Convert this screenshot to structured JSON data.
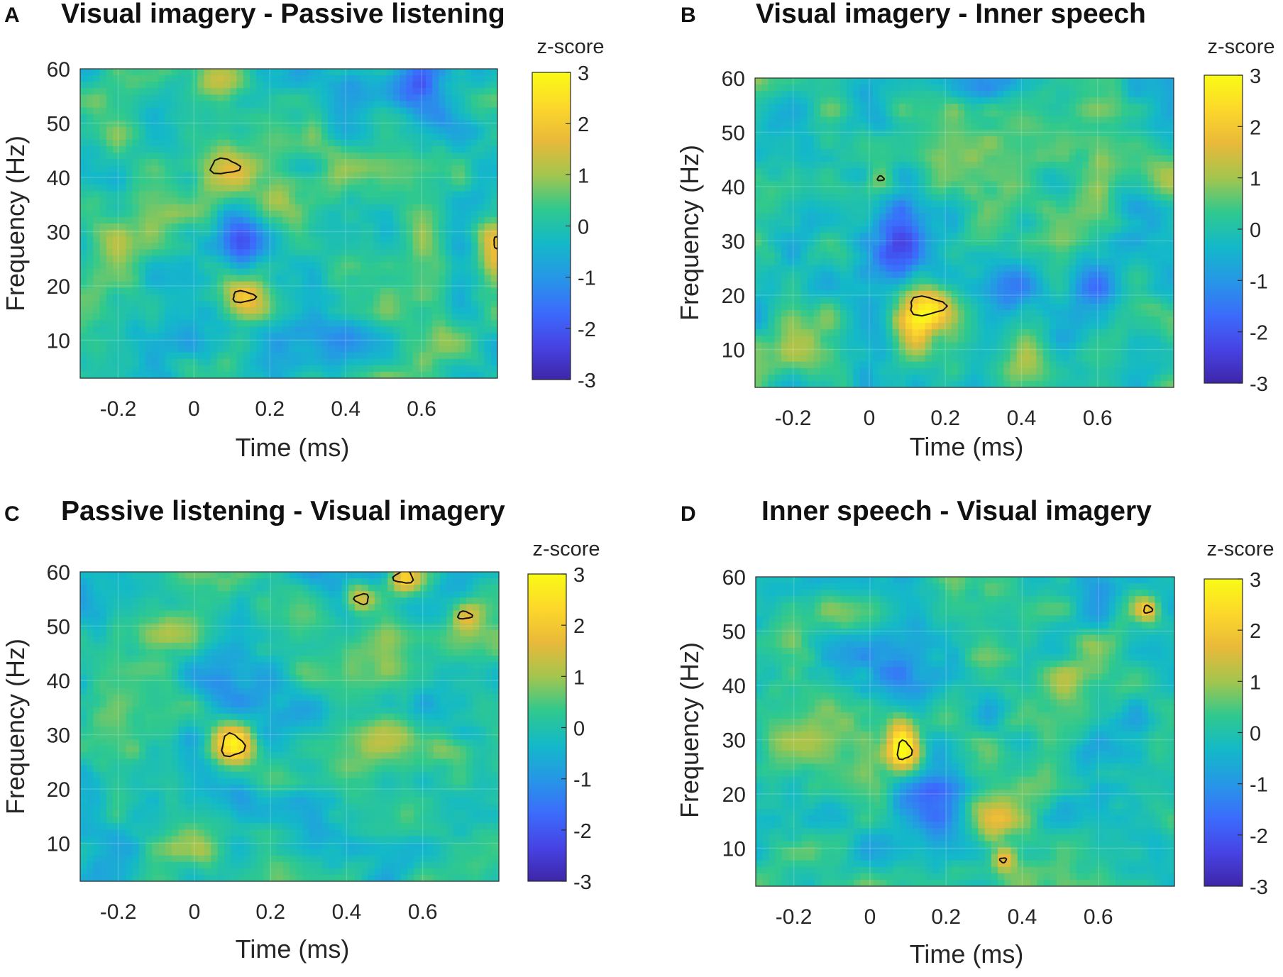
{
  "figure": {
    "colormap": [
      "#3e26a8",
      "#4743e5",
      "#3b6cfc",
      "#2697e6",
      "#13b9c8",
      "#30c98d",
      "#a4c54d",
      "#e9b93a",
      "#fdd82a",
      "#f9fb15"
    ],
    "contour_color": "#111111"
  },
  "chart_data": [
    {
      "panel": "A",
      "type": "heatmap",
      "title": "Visual imagery - Passive listening",
      "xlabel": "Time (ms)",
      "ylabel": "Frequency (Hz)",
      "xlim": [
        -0.3,
        0.8
      ],
      "ylim": [
        3,
        60
      ],
      "xticks": [
        -0.2,
        0,
        0.2,
        0.4,
        0.6
      ],
      "xtick_labels": [
        "-0.2",
        "0",
        "0.2",
        "0.4",
        "0.6"
      ],
      "yticks": [
        10,
        20,
        30,
        40,
        50,
        60
      ],
      "ytick_labels": [
        "10",
        "20",
        "30",
        "40",
        "50",
        "60"
      ],
      "colorbar": {
        "label": "z-score",
        "range": [
          -3,
          3
        ],
        "ticks": [
          3,
          2,
          1,
          0,
          -1,
          -2,
          -3
        ],
        "tick_labels": [
          "3",
          "2",
          "1",
          "0",
          "-1",
          "-2",
          "-3"
        ]
      },
      "blobs": [
        {
          "t": 0.05,
          "f": 58,
          "st": 0.05,
          "sf": 2.5,
          "z": 1.3
        },
        {
          "t": 0.55,
          "f": 57,
          "st": 0.08,
          "sf": 3,
          "z": -1.5
        },
        {
          "t": 0.68,
          "f": 51,
          "st": 0.06,
          "sf": 3,
          "z": -1.0
        },
        {
          "t": 0.1,
          "f": 41,
          "st": 0.05,
          "sf": 3,
          "z": 2.2
        },
        {
          "t": 0.12,
          "f": 29,
          "st": 0.04,
          "sf": 5,
          "z": -2.0
        },
        {
          "t": 0.25,
          "f": 35,
          "st": 0.06,
          "sf": 5,
          "z": 0.9
        },
        {
          "t": 0.13,
          "f": 18,
          "st": 0.04,
          "sf": 3,
          "z": 2.2
        },
        {
          "t": 0.79,
          "f": 28,
          "st": 0.03,
          "sf": 3,
          "z": 2.0
        },
        {
          "t": 0.35,
          "f": 12,
          "st": 0.08,
          "sf": 4,
          "z": -0.8
        },
        {
          "t": 0.68,
          "f": 9,
          "st": 0.06,
          "sf": 3,
          "z": 0.8
        },
        {
          "t": -0.15,
          "f": 30,
          "st": 0.08,
          "sf": 6,
          "z": 0.6
        },
        {
          "t": 0.4,
          "f": 43,
          "st": 0.07,
          "sf": 4,
          "z": 0.7
        }
      ],
      "significant_clusters": [
        {
          "t": 0.08,
          "f": 42,
          "rt": 0.045,
          "rf": 1.6
        },
        {
          "t": 0.13,
          "f": 18,
          "rt": 0.035,
          "rf": 1.2
        },
        {
          "t": 0.8,
          "f": 28,
          "rt": 0.012,
          "rf": 1.2
        }
      ]
    },
    {
      "panel": "B",
      "type": "heatmap",
      "title": "Visual imagery - Inner speech",
      "xlabel": "Time (ms)",
      "ylabel": "Frequency (Hz)",
      "xlim": [
        -0.3,
        0.8
      ],
      "ylim": [
        3,
        60
      ],
      "xticks": [
        -0.2,
        0,
        0.2,
        0.4,
        0.6
      ],
      "xtick_labels": [
        "-0.2",
        "0",
        "0.2",
        "0.4",
        "0.6"
      ],
      "yticks": [
        10,
        20,
        30,
        40,
        50,
        60
      ],
      "ytick_labels": [
        "10",
        "20",
        "30",
        "40",
        "50",
        "60"
      ],
      "colorbar": {
        "label": "z-score",
        "range": [
          -3,
          3
        ],
        "ticks": [
          3,
          2,
          1,
          0,
          -1,
          -2,
          -3
        ],
        "tick_labels": [
          "3",
          "2",
          "1",
          "0",
          "-1",
          "-2",
          "-3"
        ]
      },
      "blobs": [
        {
          "t": 0.15,
          "f": 18,
          "st": 0.05,
          "sf": 3,
          "z": 2.6
        },
        {
          "t": 0.12,
          "f": 12,
          "st": 0.03,
          "sf": 3,
          "z": 1.3
        },
        {
          "t": 0.08,
          "f": 29,
          "st": 0.04,
          "sf": 5,
          "z": -1.8
        },
        {
          "t": 0.03,
          "f": 41,
          "st": 0.03,
          "sf": 2,
          "z": 1.2
        },
        {
          "t": 0.7,
          "f": 43,
          "st": 0.08,
          "sf": 3,
          "z": 1.0
        },
        {
          "t": 0.35,
          "f": 20,
          "st": 0.06,
          "sf": 5,
          "z": -1.2
        },
        {
          "t": 0.6,
          "f": 20,
          "st": 0.07,
          "sf": 5,
          "z": -0.9
        },
        {
          "t": 0.3,
          "f": 58,
          "st": 0.1,
          "sf": 2,
          "z": -0.8
        },
        {
          "t": -0.2,
          "f": 10,
          "st": 0.07,
          "sf": 3,
          "z": 0.5
        },
        {
          "t": 0.45,
          "f": 8,
          "st": 0.05,
          "sf": 3,
          "z": 0.6
        }
      ],
      "significant_clusters": [
        {
          "t": 0.15,
          "f": 18,
          "rt": 0.055,
          "rf": 2.0
        },
        {
          "t": 0.03,
          "f": 41.5,
          "rt": 0.01,
          "rf": 0.5
        }
      ]
    },
    {
      "panel": "C",
      "type": "heatmap",
      "title": "Passive listening - Visual imagery",
      "xlabel": "Time (ms)",
      "ylabel": "Frequency (Hz)",
      "xlim": [
        -0.3,
        0.8
      ],
      "ylim": [
        3,
        60
      ],
      "xticks": [
        -0.2,
        0,
        0.2,
        0.4,
        0.6
      ],
      "xtick_labels": [
        "-0.2",
        "0",
        "0.2",
        "0.4",
        "0.6"
      ],
      "yticks": [
        10,
        20,
        30,
        40,
        50,
        60
      ],
      "ytick_labels": [
        "10",
        "20",
        "30",
        "40",
        "50",
        "60"
      ],
      "colorbar": {
        "label": "z-score",
        "range": [
          -3,
          3
        ],
        "ticks": [
          3,
          2,
          1,
          0,
          -1,
          -2,
          -3
        ],
        "tick_labels": [
          "3",
          "2",
          "1",
          "0",
          "-1",
          "-2",
          "-3"
        ]
      },
      "blobs": [
        {
          "t": 0.1,
          "f": 28,
          "st": 0.04,
          "sf": 3,
          "z": 2.6
        },
        {
          "t": 0.55,
          "f": 59,
          "st": 0.03,
          "sf": 2,
          "z": 2.2
        },
        {
          "t": 0.44,
          "f": 55,
          "st": 0.03,
          "sf": 2,
          "z": 2.0
        },
        {
          "t": 0.72,
          "f": 52,
          "st": 0.03,
          "sf": 2,
          "z": 1.9
        },
        {
          "t": 0.1,
          "f": 20,
          "st": 0.05,
          "sf": 4,
          "z": -1.5
        },
        {
          "t": 0.05,
          "f": 40,
          "st": 0.07,
          "sf": 4,
          "z": -1.0
        },
        {
          "t": 0.5,
          "f": 31,
          "st": 0.05,
          "sf": 3,
          "z": 1.1
        },
        {
          "t": 0.68,
          "f": 27,
          "st": 0.05,
          "sf": 3,
          "z": 0.9
        },
        {
          "t": -0.1,
          "f": 50,
          "st": 0.07,
          "sf": 3,
          "z": 0.6
        },
        {
          "t": 0.0,
          "f": 8,
          "st": 0.06,
          "sf": 3,
          "z": 0.7
        },
        {
          "t": 0.3,
          "f": 15,
          "st": 0.06,
          "sf": 4,
          "z": -0.8
        }
      ],
      "significant_clusters": [
        {
          "t": 0.1,
          "f": 28,
          "rt": 0.035,
          "rf": 2.4
        },
        {
          "t": 0.55,
          "f": 59,
          "rt": 0.03,
          "rf": 1.3
        },
        {
          "t": 0.44,
          "f": 55,
          "rt": 0.022,
          "rf": 1.1
        },
        {
          "t": 0.71,
          "f": 52,
          "rt": 0.022,
          "rf": 0.8
        }
      ]
    },
    {
      "panel": "D",
      "type": "heatmap",
      "title": "Inner speech - Visual imagery",
      "xlabel": "Time (ms)",
      "ylabel": "Frequency (Hz)",
      "xlim": [
        -0.3,
        0.8
      ],
      "ylim": [
        3,
        60
      ],
      "xticks": [
        -0.2,
        0,
        0.2,
        0.4,
        0.6
      ],
      "xtick_labels": [
        "-0.2",
        "0",
        "0.2",
        "0.4",
        "0.6"
      ],
      "yticks": [
        10,
        20,
        30,
        40,
        50,
        60
      ],
      "ytick_labels": [
        "10",
        "20",
        "30",
        "40",
        "50",
        "60"
      ],
      "colorbar": {
        "label": "z-score",
        "range": [
          -3,
          3
        ],
        "ticks": [
          3,
          2,
          1,
          0,
          -1,
          -2,
          -3
        ],
        "tick_labels": [
          "3",
          "2",
          "1",
          "0",
          "-1",
          "-2",
          "-3"
        ]
      },
      "blobs": [
        {
          "t": 0.09,
          "f": 28,
          "st": 0.03,
          "sf": 3,
          "z": 2.5
        },
        {
          "t": 0.08,
          "f": 32,
          "st": 0.03,
          "sf": 4,
          "z": 1.2
        },
        {
          "t": 0.73,
          "f": 54,
          "st": 0.02,
          "sf": 1.5,
          "z": 1.8
        },
        {
          "t": 0.35,
          "f": 8,
          "st": 0.02,
          "sf": 1.5,
          "z": 1.6
        },
        {
          "t": 0.33,
          "f": 16,
          "st": 0.04,
          "sf": 3,
          "z": 1.2
        },
        {
          "t": 0.15,
          "f": 18,
          "st": 0.06,
          "sf": 4,
          "z": -1.6
        },
        {
          "t": 0.3,
          "f": 59,
          "st": 0.06,
          "sf": 2,
          "z": 1.0
        },
        {
          "t": 0.03,
          "f": 42,
          "st": 0.06,
          "sf": 4,
          "z": -1.0
        },
        {
          "t": 0.55,
          "f": 43,
          "st": 0.06,
          "sf": 4,
          "z": 0.8
        },
        {
          "t": -0.2,
          "f": 30,
          "st": 0.07,
          "sf": 5,
          "z": 0.5
        },
        {
          "t": 0.6,
          "f": 20,
          "st": 0.07,
          "sf": 4,
          "z": -0.8
        }
      ],
      "significant_clusters": [
        {
          "t": 0.09,
          "f": 28,
          "rt": 0.022,
          "rf": 2.0
        },
        {
          "t": 0.73,
          "f": 54,
          "rt": 0.013,
          "rf": 0.8
        },
        {
          "t": 0.35,
          "f": 7.8,
          "rt": 0.01,
          "rf": 0.5
        }
      ]
    }
  ]
}
